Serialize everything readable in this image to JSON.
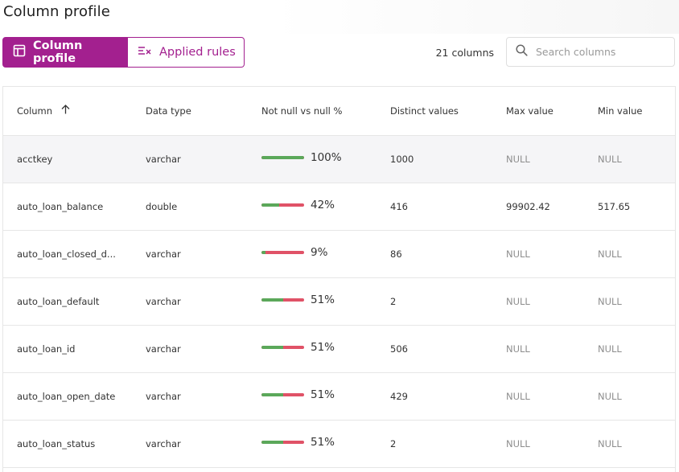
{
  "header": {
    "title": "Column profile"
  },
  "toolbar": {
    "tab_profile": "Column profile",
    "tab_rules": "Applied rules",
    "column_count": "21 columns",
    "search_placeholder": "Search columns",
    "search_value": ""
  },
  "colors": {
    "accent": "#a3208f",
    "not_null": "#5ba85a",
    "null": "#e05267"
  },
  "table": {
    "headers": [
      "Column",
      "Data type",
      "Not null vs null %",
      "Distinct values",
      "Max value",
      "Min value"
    ],
    "sort_icon": "arrow-up-icon",
    "rows": [
      {
        "column": "acctkey",
        "type": "varchar",
        "not_null_pct": 100,
        "pct_label": "100%",
        "distinct": "1000",
        "max": "NULL",
        "min": "NULL"
      },
      {
        "column": "auto_loan_balance",
        "type": "double",
        "not_null_pct": 42,
        "pct_label": "42%",
        "distinct": "416",
        "max": "99902.42",
        "min": "517.65"
      },
      {
        "column": "auto_loan_closed_d...",
        "type": "varchar",
        "not_null_pct": 9,
        "pct_label": "9%",
        "distinct": "86",
        "max": "NULL",
        "min": "NULL"
      },
      {
        "column": "auto_loan_default",
        "type": "varchar",
        "not_null_pct": 51,
        "pct_label": "51%",
        "distinct": "2",
        "max": "NULL",
        "min": "NULL"
      },
      {
        "column": "auto_loan_id",
        "type": "varchar",
        "not_null_pct": 51,
        "pct_label": "51%",
        "distinct": "506",
        "max": "NULL",
        "min": "NULL"
      },
      {
        "column": "auto_loan_open_date",
        "type": "varchar",
        "not_null_pct": 51,
        "pct_label": "51%",
        "distinct": "429",
        "max": "NULL",
        "min": "NULL"
      },
      {
        "column": "auto_loan_status",
        "type": "varchar",
        "not_null_pct": 51,
        "pct_label": "51%",
        "distinct": "2",
        "max": "NULL",
        "min": "NULL"
      }
    ]
  }
}
